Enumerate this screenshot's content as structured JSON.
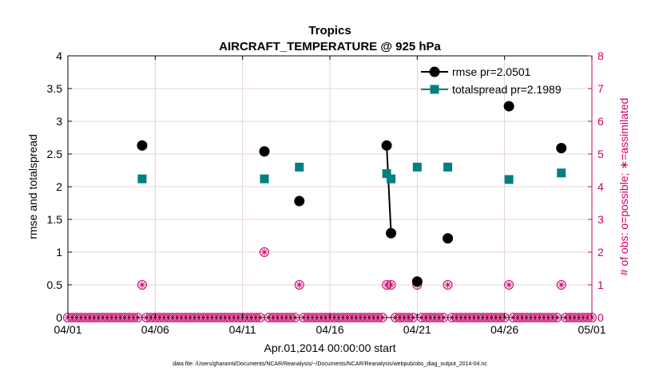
{
  "chart_data": {
    "type": "scatter",
    "title": "Tropics",
    "subtitle": "AIRCRAFT_TEMPERATURE @ 925 hPa",
    "xlabel": "Apr.01,2014 00:00:00 start",
    "ylabel": "rmse and totalspread",
    "y2label": "# of obs: o=possible; ∗=assimilated",
    "footnote": "data file: /Users/gharamti/Documents/NCAR/Reanalysis/~/Documents/NCAR/Reanalysis/webpub/obs_diag_output_2014-04.nc",
    "xlim": [
      1,
      31
    ],
    "ylim": [
      0,
      4
    ],
    "y2lim": [
      0,
      8
    ],
    "xticks": [
      1,
      6,
      11,
      16,
      21,
      26,
      31
    ],
    "xticklabels": [
      "04/01",
      "04/06",
      "04/11",
      "04/16",
      "04/21",
      "04/26",
      "05/01"
    ],
    "yticks": [
      0,
      0.5,
      1,
      1.5,
      2,
      2.5,
      3,
      3.5,
      4
    ],
    "yticklabels": [
      "0",
      "0.5",
      "1",
      "1.5",
      "2",
      "2.5",
      "3",
      "3.5",
      "4"
    ],
    "y2ticks": [
      0,
      1,
      2,
      3,
      4,
      5,
      6,
      7,
      8
    ],
    "y2ticklabels": [
      "0",
      "1",
      "2",
      "3",
      "4",
      "5",
      "6",
      "7",
      "8"
    ],
    "grid": true,
    "legend_position": "top-right",
    "colors": {
      "rmse": "#000000",
      "totalspread": "#008080",
      "obs": "#cc0066",
      "grid": "#dfc6d2"
    },
    "series": [
      {
        "name": "rmse pr=2.0501",
        "marker": "circle",
        "x": [
          5.25,
          12.25,
          14.25,
          19.25,
          19.5,
          21.0,
          22.75,
          26.25,
          29.25
        ],
        "y": [
          2.63,
          2.54,
          1.78,
          2.63,
          1.29,
          0.55,
          1.21,
          3.23,
          2.59
        ]
      },
      {
        "name": "totalspread pr=2.1989",
        "marker": "square",
        "x": [
          5.25,
          12.25,
          14.25,
          19.25,
          19.5,
          21.0,
          22.75,
          26.25,
          29.25
        ],
        "y": [
          2.12,
          2.12,
          2.3,
          2.2,
          2.12,
          2.3,
          2.3,
          2.11,
          2.21
        ]
      }
    ],
    "line_segments": [
      {
        "series": "rmse pr=2.0501",
        "from": 3,
        "to": 4
      },
      {
        "series": "totalspread pr=2.1989",
        "from": 3,
        "to": 4
      }
    ],
    "obs_counts": {
      "axis": "right",
      "x": [
        1.0,
        1.25,
        1.5,
        1.75,
        2.0,
        2.25,
        2.5,
        2.75,
        3.0,
        3.25,
        3.5,
        3.75,
        4.0,
        4.25,
        4.5,
        4.75,
        5.0,
        5.25,
        5.5,
        5.75,
        6.0,
        6.25,
        6.5,
        6.75,
        7.0,
        7.25,
        7.5,
        7.75,
        8.0,
        8.25,
        8.5,
        8.75,
        9.0,
        9.25,
        9.5,
        9.75,
        10.0,
        10.25,
        10.5,
        10.75,
        11.0,
        11.25,
        11.5,
        11.75,
        12.0,
        12.25,
        12.5,
        12.75,
        13.0,
        13.25,
        13.5,
        13.75,
        14.0,
        14.25,
        14.5,
        14.75,
        15.0,
        15.25,
        15.5,
        15.75,
        16.0,
        16.25,
        16.5,
        16.75,
        17.0,
        17.25,
        17.5,
        17.75,
        18.0,
        18.25,
        18.5,
        18.75,
        19.0,
        19.25,
        19.5,
        19.75,
        20.0,
        20.25,
        20.5,
        20.75,
        21.0,
        21.25,
        21.5,
        21.75,
        22.0,
        22.25,
        22.5,
        22.75,
        23.0,
        23.25,
        23.5,
        23.75,
        24.0,
        24.25,
        24.5,
        24.75,
        25.0,
        25.25,
        25.5,
        25.75,
        26.0,
        26.25,
        26.5,
        26.75,
        27.0,
        27.25,
        27.5,
        27.75,
        28.0,
        28.25,
        28.5,
        28.75,
        29.0,
        29.25,
        29.5,
        29.75,
        30.0,
        30.25,
        30.5,
        30.75,
        31.0
      ],
      "possible": [
        0,
        0,
        0,
        0,
        0,
        0,
        0,
        0,
        0,
        0,
        0,
        0,
        0,
        0,
        0,
        0,
        0,
        1,
        0,
        0,
        0,
        0,
        0,
        0,
        0,
        0,
        0,
        0,
        0,
        0,
        0,
        0,
        0,
        0,
        0,
        0,
        0,
        0,
        0,
        0,
        0,
        0,
        0,
        0,
        0,
        2,
        0,
        0,
        0,
        0,
        0,
        0,
        0,
        1,
        0,
        0,
        0,
        0,
        0,
        0,
        0,
        0,
        0,
        0,
        0,
        0,
        0,
        0,
        0,
        0,
        0,
        0,
        0,
        1,
        1,
        0,
        0,
        0,
        0,
        0,
        1,
        0,
        0,
        0,
        0,
        0,
        0,
        1,
        0,
        0,
        0,
        0,
        0,
        0,
        0,
        0,
        0,
        0,
        0,
        0,
        0,
        1,
        0,
        0,
        0,
        0,
        0,
        0,
        0,
        0,
        0,
        0,
        0,
        1,
        0,
        0,
        0,
        0,
        0,
        0,
        0
      ],
      "assimilated": [
        0,
        0,
        0,
        0,
        0,
        0,
        0,
        0,
        0,
        0,
        0,
        0,
        0,
        0,
        0,
        0,
        0,
        1,
        0,
        0,
        0,
        0,
        0,
        0,
        0,
        0,
        0,
        0,
        0,
        0,
        0,
        0,
        0,
        0,
        0,
        0,
        0,
        0,
        0,
        0,
        0,
        0,
        0,
        0,
        0,
        2,
        0,
        0,
        0,
        0,
        0,
        0,
        0,
        1,
        0,
        0,
        0,
        0,
        0,
        0,
        0,
        0,
        0,
        0,
        0,
        0,
        0,
        0,
        0,
        0,
        0,
        0,
        0,
        1,
        1,
        0,
        0,
        0,
        0,
        0,
        1,
        0,
        0,
        0,
        0,
        0,
        0,
        1,
        0,
        0,
        0,
        0,
        0,
        0,
        0,
        0,
        0,
        0,
        0,
        0,
        0,
        1,
        0,
        0,
        0,
        0,
        0,
        0,
        0,
        0,
        0,
        0,
        0,
        1,
        0,
        0,
        0,
        0,
        0,
        0,
        0
      ]
    }
  }
}
